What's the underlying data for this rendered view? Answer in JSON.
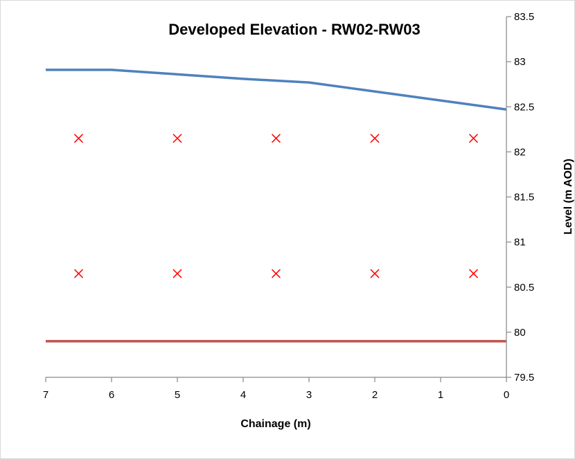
{
  "chart_data": {
    "type": "line",
    "title": "Developed Elevation - RW02-RW03",
    "xlabel": "Chainage (m)",
    "ylabel": "Level (m AOD)",
    "xlim": [
      7,
      0
    ],
    "x_reversed": true,
    "ylim": [
      79.5,
      83.5
    ],
    "y_axis_position": "right",
    "x_ticks": [
      7,
      6,
      5,
      4,
      3,
      2,
      1,
      0
    ],
    "y_ticks": [
      79.5,
      80,
      80.5,
      81,
      81.5,
      82,
      82.5,
      83,
      83.5
    ],
    "x_tick_labels": [
      "7",
      "6",
      "5",
      "4",
      "3",
      "2",
      "1",
      "0"
    ],
    "y_tick_labels": [
      "79.5",
      "80",
      "80.5",
      "81",
      "81.5",
      "82",
      "82.5",
      "83",
      "83.5"
    ],
    "grid": false,
    "legend": "none",
    "series": [
      {
        "kind": "line",
        "color": "#4f81bd",
        "points": [
          [
            7,
            82.91
          ],
          [
            6,
            82.91
          ],
          [
            5,
            82.86
          ],
          [
            4,
            82.81
          ],
          [
            3,
            82.77
          ],
          [
            2,
            82.67
          ],
          [
            1,
            82.57
          ],
          [
            0,
            82.47
          ]
        ]
      },
      {
        "kind": "line",
        "color": "#c0504d",
        "points": [
          [
            7,
            79.9
          ],
          [
            0,
            79.9
          ]
        ]
      },
      {
        "kind": "marker-x",
        "color": "#ff0000",
        "points": [
          [
            6.5,
            82.15
          ],
          [
            5,
            82.15
          ],
          [
            3.5,
            82.15
          ],
          [
            2,
            82.15
          ],
          [
            0.5,
            82.15
          ]
        ]
      },
      {
        "kind": "marker-x",
        "color": "#ff0000",
        "points": [
          [
            6.5,
            80.65
          ],
          [
            5,
            80.65
          ],
          [
            3.5,
            80.65
          ],
          [
            2,
            80.65
          ],
          [
            0.5,
            80.65
          ]
        ]
      }
    ]
  }
}
